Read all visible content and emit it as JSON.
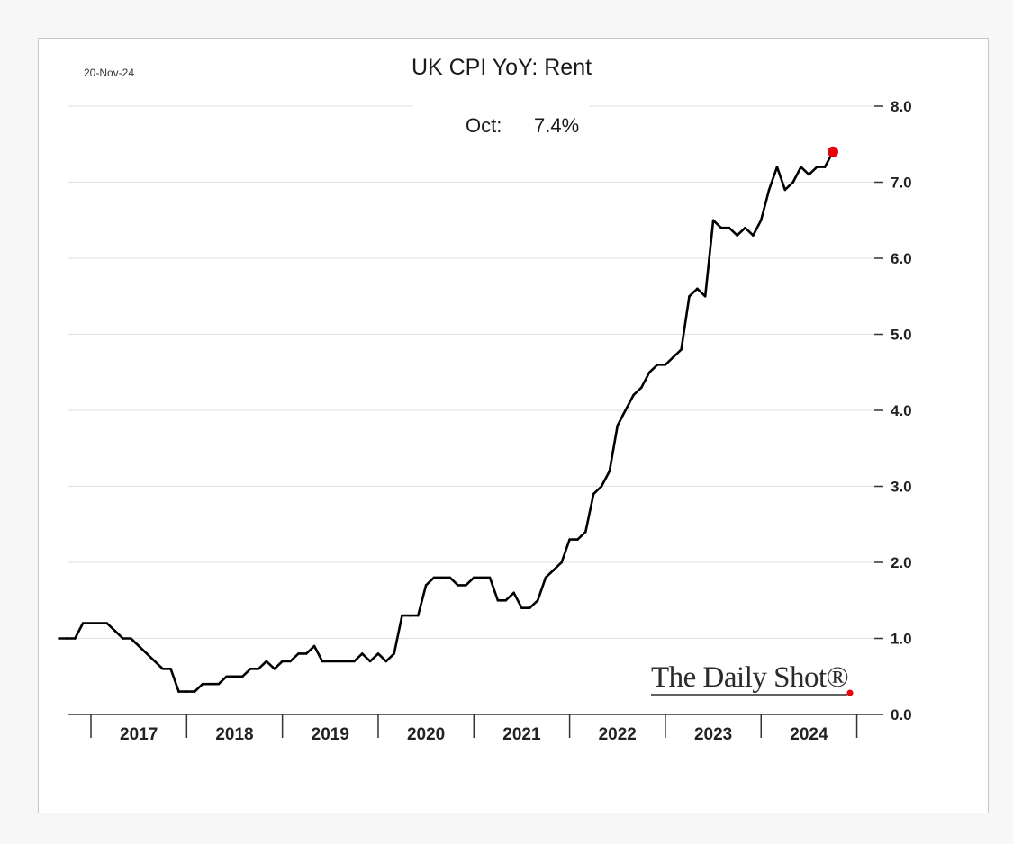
{
  "chart_data": {
    "type": "line",
    "date_stamp": "20-Nov-24",
    "title": "UK CPI YoY: Rent",
    "subtitle": {
      "label": "Oct:",
      "value": "7.4%"
    },
    "xlabel": "",
    "ylabel": "",
    "ylim": [
      0,
      8
    ],
    "y_ticks": [
      "0.0",
      "1.0",
      "2.0",
      "3.0",
      "4.0",
      "5.0",
      "6.0",
      "7.0",
      "8.0"
    ],
    "x_ticks": [
      "2017",
      "2018",
      "2019",
      "2020",
      "2021",
      "2022",
      "2023",
      "2024"
    ],
    "grid": "horizontal",
    "y_axis_position": "right",
    "line_color": "#000000",
    "marker_color": "#e8000b",
    "last_point_marker": "red-dot",
    "watermark": "The Daily Shot®",
    "series": [
      {
        "start": "2016-09",
        "frequency": "monthly",
        "values": [
          1.0,
          1.0,
          1.0,
          1.2,
          1.2,
          1.2,
          1.2,
          1.1,
          1.0,
          1.0,
          0.9,
          0.8,
          0.7,
          0.6,
          0.6,
          0.3,
          0.3,
          0.3,
          0.4,
          0.4,
          0.4,
          0.5,
          0.5,
          0.5,
          0.6,
          0.6,
          0.7,
          0.6,
          0.7,
          0.7,
          0.8,
          0.8,
          0.9,
          0.7,
          0.7,
          0.7,
          0.7,
          0.7,
          0.8,
          0.7,
          0.8,
          0.7,
          0.8,
          1.3,
          1.3,
          1.3,
          1.7,
          1.8,
          1.8,
          1.8,
          1.7,
          1.7,
          1.8,
          1.8,
          1.8,
          1.5,
          1.5,
          1.6,
          1.4,
          1.4,
          1.5,
          1.8,
          1.9,
          2.0,
          2.3,
          2.3,
          2.4,
          2.9,
          3.0,
          3.2,
          3.8,
          4.0,
          4.2,
          4.3,
          4.5,
          4.6,
          4.6,
          4.7,
          4.8,
          5.5,
          5.6,
          5.5,
          6.5,
          6.4,
          6.4,
          6.3,
          6.4,
          6.3,
          6.5,
          6.9,
          7.2,
          6.9,
          7.0,
          7.2,
          7.1,
          7.2,
          7.2,
          7.4
        ]
      }
    ]
  }
}
